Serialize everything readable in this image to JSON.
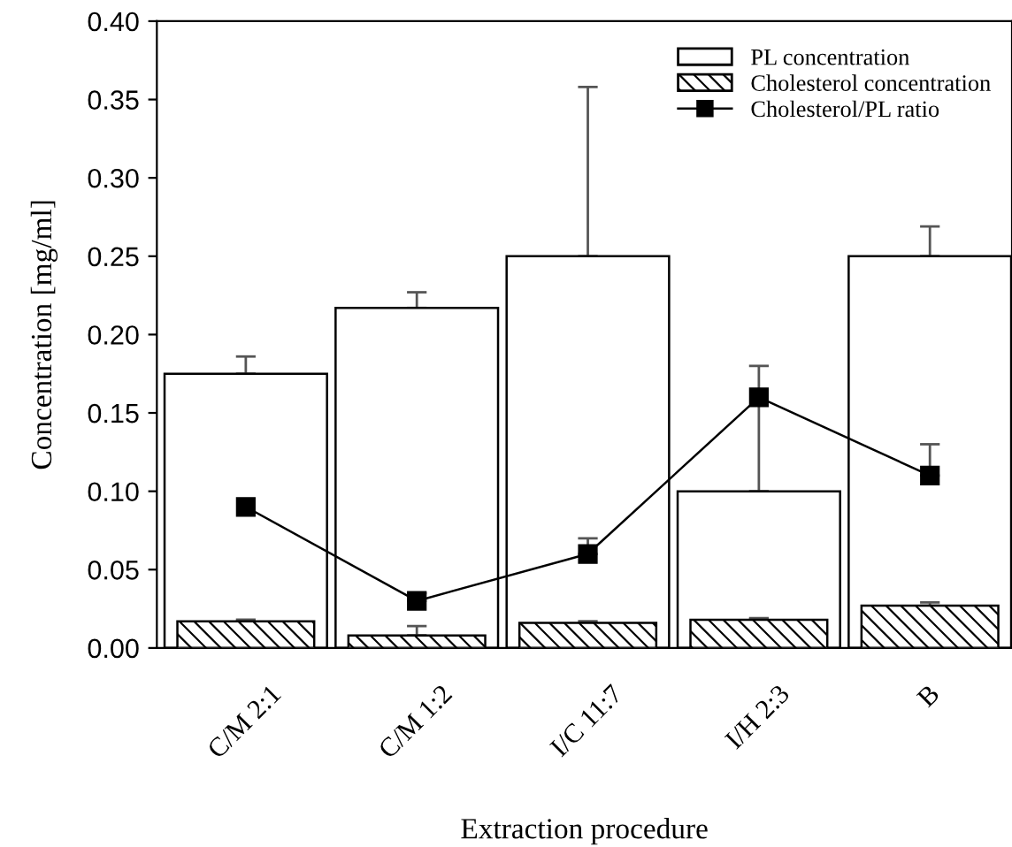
{
  "chart_data": {
    "type": "bar",
    "xlabel": "Extraction procedure",
    "ylabel": "Concentration [mg/ml]",
    "categories": [
      "C/M 2:1",
      "C/M 1:2",
      "I/C 11:7",
      "I/H 2:3",
      "B"
    ],
    "ylim": [
      0,
      0.4
    ],
    "yticks": [
      {
        "value": 0,
        "label": "0.00"
      },
      0.05,
      {
        "value": 0.1,
        "label": "0.10"
      },
      0.15,
      {
        "value": 0.2,
        "label": "0.20"
      },
      0.25,
      {
        "value": 0.3,
        "label": "0.30"
      },
      0.35,
      {
        "value": 0.4,
        "label": "0.40"
      }
    ],
    "grid": false,
    "legend": "top right",
    "series": [
      {
        "name": "PL concentration",
        "color": "#ffffff",
        "values": [
          0.175,
          0.217,
          0.25,
          0.1,
          0.25
        ],
        "errors": [
          [
            0.175,
            0.186
          ],
          [
            0.217,
            0.227
          ],
          [
            0.25,
            0.358
          ],
          [
            0.1,
            0.18
          ],
          [
            0.25,
            0.269
          ]
        ]
      },
      {
        "name": "Cholesterol concentration",
        "color": "#000000",
        "values": [
          0.017,
          0.008,
          0.016,
          0.018,
          0.027
        ],
        "errors": [
          [
            0.017,
            0.018
          ],
          [
            0.008,
            0.014
          ],
          [
            0.016,
            0.017
          ],
          [
            0.018,
            0.019
          ],
          [
            0.027,
            0.029
          ]
        ]
      },
      {
        "name": "Cholesterol/PL ratio",
        "type": "line",
        "color": "#000000",
        "marker": "square",
        "values": [
          0.09,
          0.03,
          0.06,
          0.16,
          0.11
        ],
        "errors": [
          null,
          [
            0.03,
            0.035
          ],
          [
            0.06,
            0.07
          ],
          null,
          [
            0.11,
            0.13
          ]
        ]
      }
    ]
  }
}
